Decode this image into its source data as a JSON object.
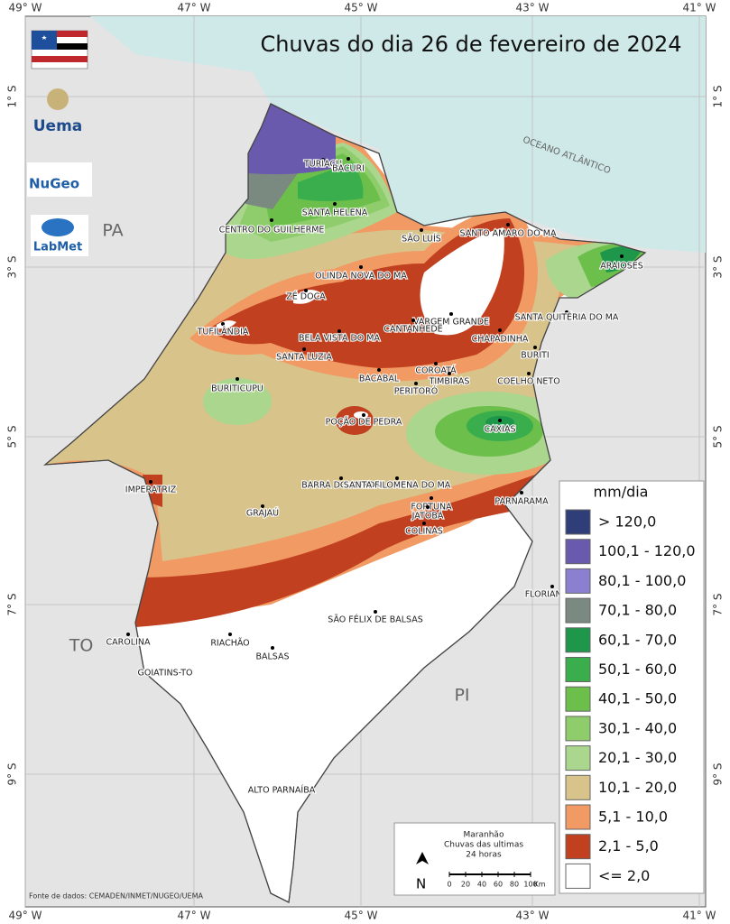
{
  "header": {
    "title": "Chuvas do dia 26 de fevereiro de 2024"
  },
  "graticule": {
    "lon_labels": [
      "49° W",
      "47° W",
      "45° W",
      "43° W",
      "41° W"
    ],
    "lat_labels": [
      "1° S",
      "3° S",
      "5° S",
      "7° S",
      "9° S"
    ]
  },
  "logos": [
    "Uema",
    "NuGeo",
    "LabMet"
  ],
  "regions": [
    "PA",
    "TO",
    "PI",
    "OCEANO ATLÂNTICO"
  ],
  "cities": [
    "TURIAÇU",
    "BACURI",
    "SANTA HELENA",
    "CENTRO DO GUILHERME",
    "SÃO LUÍS",
    "SANTO AMARO DO MA",
    "ARAIOSES",
    "OLINDA NOVA DO MA",
    "ZÉ DOCA",
    "VARGEM GRANDE",
    "SANTA QUITÉRIA DO MA",
    "TUFILÂNDIA",
    "CANTANHEDE",
    "BELA VISTA DO MA",
    "CHAPADINHA",
    "BURITI",
    "SANTA LUZIA",
    "COROATÁ",
    "BACABAL",
    "TIMBIRAS",
    "COELHO NETO",
    "BURITICUPU",
    "PERITORÓ",
    "POÇÃO DE PEDRA",
    "CAXIAS",
    "IMPERATRIZ",
    "BARRA DO CORDA",
    "SANTA FILOMENA DO MA",
    "FORTUNA",
    "JATOBÁ",
    "PARNARAMA",
    "GRAJAÚ",
    "COLINAS",
    "FLORIANO-PI",
    "SÃO FÉLIX DE BALSAS",
    "CAROLINA",
    "RIACHÃO",
    "BALSAS",
    "GOIATINS-TO",
    "ALTO PARNAÍBA"
  ],
  "legend": {
    "title": "mm/dia",
    "items": [
      {
        "label": "> 120,0",
        "color": "#2f3e78"
      },
      {
        "label": "100,1 - 120,0",
        "color": "#6a5aae"
      },
      {
        "label": "80,1 - 100,0",
        "color": "#8b80cf"
      },
      {
        "label": "70,1 - 80,0",
        "color": "#7a8a80"
      },
      {
        "label": "60,1 - 70,0",
        "color": "#1f974b"
      },
      {
        "label": "50,1 - 60,0",
        "color": "#3aae4c"
      },
      {
        "label": "40,1 - 50,0",
        "color": "#6dbf4b"
      },
      {
        "label": "30,1 - 40,0",
        "color": "#8fcc6c"
      },
      {
        "label": "20,1 - 30,0",
        "color": "#aad68e"
      },
      {
        "label": "10,1 - 20,0",
        "color": "#d8c38a"
      },
      {
        "label": "5,1 - 10,0",
        "color": "#f19a64"
      },
      {
        "label": "2,1 - 5,0",
        "color": "#c0401f"
      },
      {
        "label": "<= 2,0",
        "color": "#ffffff"
      }
    ]
  },
  "scale_box": {
    "lines": [
      "Maranhão",
      "Chuvas das ultimas",
      "24 horas"
    ],
    "north": "N",
    "ticks": [
      0,
      20,
      40,
      60,
      80,
      100
    ],
    "unit": "Km"
  },
  "source": "Fonte de dados: CEMADEN/INMET/NUGEO/UEMA"
}
